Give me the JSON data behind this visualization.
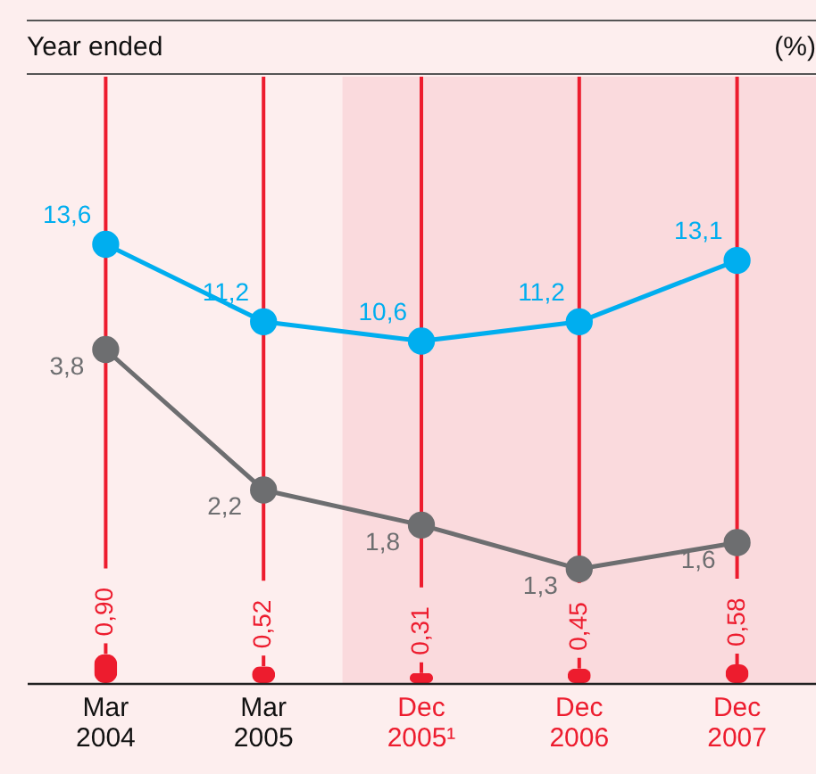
{
  "chart_data": {
    "type": "line",
    "title": "Year ended",
    "annotations": [
      "(%)"
    ],
    "categories": [
      "Mar\n2004",
      "Mar\n2005",
      "Dec\n2005¹",
      "Dec\n2006",
      "Dec\n2007"
    ],
    "series": [
      {
        "color": "#00aeef",
        "values": [
          13.6,
          11.2,
          10.6,
          11.2,
          13.1
        ],
        "value_labels": [
          "13,6",
          "11,2",
          "10,6",
          "11,2",
          "13,1"
        ]
      },
      {
        "axis": "y2",
        "color": "#6d6e70",
        "values": [
          3.8,
          2.2,
          1.8,
          1.3,
          1.6
        ],
        "value_labels": [
          "3,8",
          "2,2",
          "1,8",
          "1,3",
          "1,6"
        ]
      },
      {
        "type": "bar",
        "color": "#ed1c2e",
        "values": [
          0.9,
          0.52,
          0.31,
          0.45,
          0.58
        ],
        "value_labels": [
          "0,90",
          "0,52",
          "0,31",
          "0,45",
          "0,58"
        ]
      }
    ],
    "tick_labels": "x",
    "grid": "x",
    "marker": "circle",
    "bands": [
      {
        "axis": "x",
        "from": "Dec\n2005¹",
        "to": "Dec\n2007",
        "color": "#fadadd"
      }
    ]
  }
}
